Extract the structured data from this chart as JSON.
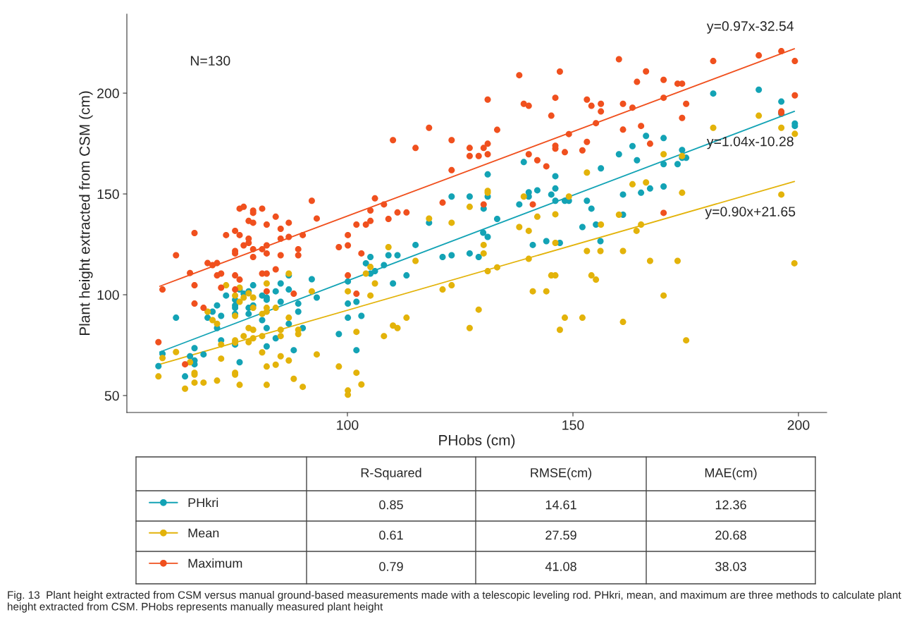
{
  "chart_data": {
    "type": "scatter",
    "xlabel": "PHobs (cm)",
    "ylabel": "Plant height extracted from CSM (cm)",
    "xlim": [
      51.1,
      206.25
    ],
    "ylim": [
      41.6,
      239.2
    ],
    "xticks": [
      100,
      150,
      200
    ],
    "yticks": [
      50,
      100,
      150,
      200
    ],
    "marker": "circle",
    "legend": "bottom",
    "series": [
      {
        "name": "PHkri",
        "color": "#13a3b5",
        "x": [
          62.0,
          59.0,
          58.1,
          65.1,
          66.1,
          66.1,
          66.1,
          64.0,
          68.1,
          70.1,
          69.0,
          71.1,
          72.0,
          71.1,
          72.0,
          73.1,
          75.1,
          75.1,
          75.1,
          75.1,
          75.1,
          76.1,
          76.1,
          77.0,
          78.1,
          78.1,
          78.1,
          79.1,
          79.1,
          81.1,
          82.1,
          82.1,
          81.1,
          82.1,
          82.1,
          84.1,
          85.2,
          85.2,
          87.0,
          87.0,
          84.1,
          89.1,
          89.1,
          90.1,
          88.1,
          87.0,
          92.1,
          93.2,
          98.1,
          100.1,
          100.1,
          100.1,
          139.1,
          131.1,
          146.1,
          146.1,
          142.1,
          140.2,
          140.2,
          145.2,
          131.1,
          127.1,
          123.1,
          146.1,
          148.2,
          149.1,
          153.1,
          138.1,
          130.2,
          154.1,
          133.2,
          118.1,
          130.1,
          131.1,
          115.1,
          141.1,
          144.1,
          147.1,
          152.1,
          104.1,
          105.1,
          105.1,
          106.1,
          108.1,
          109.1,
          111.1,
          121.1,
          123.1,
          127.1,
          129.1,
          110.1,
          113.1,
          102.0,
          103.1,
          102.0,
          181.1,
          191.2,
          196.2,
          196.2,
          199.2,
          199.2,
          166.2,
          170.1,
          163.2,
          160.2,
          164.2,
          174.2,
          174.2,
          175.1,
          170.1,
          173.2,
          156.2,
          167.1,
          165.1,
          170.1,
          161.1,
          161.1,
          155.1,
          156.1
        ],
        "values": [
          88.6,
          70.7,
          64.6,
          69.5,
          73.5,
          67.4,
          65.5,
          59.5,
          70.4,
          91.6,
          88.6,
          94.7,
          89.5,
          83.5,
          77.4,
          99.6,
          97.5,
          94.7,
          93.5,
          90.5,
          75.3,
          102.6,
          66.5,
          100.5,
          101.7,
          93.5,
          90.5,
          104.7,
          94.7,
          99.6,
          98.6,
          97.5,
          87.4,
          83.5,
          74.4,
          101.7,
          105.6,
          96.5,
          102.6,
          85.6,
          78.4,
          95.6,
          91.6,
          83.5,
          72.5,
          109.6,
          107.7,
          98.6,
          80.5,
          106.6,
          95.6,
          88.6,
          165.8,
          159.7,
          158.8,
          152.7,
          151.8,
          150.8,
          148.7,
          149.7,
          148.7,
          148.7,
          148.7,
          146.6,
          146.6,
          146.6,
          146.6,
          144.8,
          142.7,
          142.7,
          137.6,
          135.7,
          130.8,
          128.7,
          124.7,
          124.7,
          126.6,
          125.7,
          133.6,
          115.6,
          118.7,
          110.5,
          111.7,
          114.7,
          119.6,
          119.6,
          118.7,
          119.6,
          120.5,
          118.7,
          105.6,
          109.6,
          96.5,
          89.5,
          72.5,
          199.8,
          201.7,
          195.8,
          189.8,
          184.9,
          183.7,
          178.8,
          177.7,
          173.7,
          169.7,
          166.7,
          171.8,
          167.9,
          167.9,
          164.8,
          164.8,
          162.7,
          152.7,
          150.6,
          153.7,
          149.7,
          139.7,
          134.8,
          126.6
        ]
      },
      {
        "name": "Mean",
        "color": "#e3b30a",
        "x": [
          58.1,
          59.0,
          62.0,
          65.1,
          64.0,
          66.1,
          66.1,
          66.1,
          68.1,
          69.0,
          70.1,
          71.1,
          72.0,
          72.0,
          71.1,
          73.1,
          75.1,
          75.1,
          75.1,
          75.1,
          75.1,
          75.1,
          76.1,
          76.1,
          76.1,
          77.0,
          77.0,
          78.1,
          78.1,
          78.1,
          79.1,
          79.1,
          79.1,
          79.1,
          81.1,
          81.1,
          81.1,
          82.1,
          82.1,
          82.1,
          82.1,
          82.1,
          84.1,
          84.1,
          85.2,
          85.2,
          85.2,
          87.0,
          87.0,
          87.0,
          88.1,
          89.1,
          89.1,
          90.1,
          92.1,
          93.2,
          98.1,
          100.1,
          100.1,
          100.1,
          153.1,
          131.1,
          131.1,
          139.1,
          149.1,
          127.1,
          118.1,
          123.1,
          146.1,
          142.1,
          109.1,
          130.2,
          130.2,
          146.1,
          138.1,
          140.2,
          115.1,
          140.2,
          153.1,
          105.1,
          104.1,
          106.1,
          105.1,
          131.1,
          133.2,
          145.2,
          146.1,
          154.1,
          121.1,
          123.1,
          141.1,
          144.1,
          129.1,
          113.1,
          110.1,
          111.1,
          108.1,
          102.0,
          127.1,
          148.2,
          147.1,
          152.1,
          102.0,
          103.1,
          181.1,
          191.2,
          196.2,
          199.2,
          170.1,
          174.2,
          163.2,
          166.2,
          174.2,
          196.2,
          160.2,
          156.2,
          164.1,
          165.1,
          156.1,
          161.1,
          167.1,
          173.2,
          199.1,
          155.1,
          170.1,
          161.1,
          175.1
        ],
        "values": [
          59.5,
          68.6,
          71.6,
          66.5,
          53.4,
          61.3,
          60.4,
          56.4,
          56.4,
          91.6,
          87.4,
          85.6,
          75.3,
          68.3,
          57.4,
          104.7,
          99.6,
          89.5,
          77.4,
          76.3,
          61.3,
          60.4,
          103.5,
          96.5,
          55.3,
          98.6,
          79.5,
          100.7,
          83.5,
          76.5,
          98.6,
          93.5,
          82.6,
          78.4,
          90.5,
          79.5,
          71.4,
          105.6,
          93.5,
          91.6,
          64.4,
          55.3,
          93.5,
          65.3,
          82.6,
          79.5,
          69.5,
          110.5,
          88.6,
          67.4,
          58.3,
          82.6,
          80.5,
          54.3,
          101.7,
          70.4,
          64.4,
          101.7,
          52.5,
          50.4,
          160.6,
          151.5,
          150.6,
          148.7,
          148.7,
          143.6,
          137.8,
          135.7,
          139.9,
          138.7,
          123.6,
          124.7,
          120.5,
          125.7,
          133.6,
          131.7,
          116.8,
          117.8,
          121.7,
          113.8,
          110.5,
          105.6,
          99.6,
          111.7,
          113.6,
          109.6,
          109.6,
          109.6,
          102.6,
          104.7,
          101.7,
          101.7,
          92.6,
          88.6,
          84.7,
          83.5,
          79.5,
          81.6,
          83.5,
          88.6,
          82.6,
          88.6,
          61.3,
          55.5,
          182.8,
          188.8,
          182.8,
          179.8,
          169.7,
          168.8,
          154.8,
          155.7,
          150.6,
          149.7,
          139.7,
          134.8,
          131.7,
          134.8,
          121.7,
          121.7,
          116.8,
          116.8,
          115.6,
          107.5,
          99.6,
          86.5,
          77.4
        ]
      },
      {
        "name": "Maximum",
        "color": "#f0501e",
        "x": [
          92.1,
          76.1,
          77.0,
          79.1,
          79.1,
          81.1,
          84.1,
          78.1,
          79.1,
          93.2,
          82.1,
          87.0,
          66.1,
          73.1,
          75.1,
          76.1,
          78.1,
          78.1,
          77.0,
          79.1,
          81.1,
          82.1,
          85.2,
          85.2,
          87.0,
          90.1,
          89.1,
          89.1,
          85.2,
          82.1,
          79.1,
          75.1,
          75.1,
          62.0,
          69.0,
          70.1,
          71.1,
          65.1,
          71.1,
          72.0,
          75.1,
          76.1,
          81.1,
          82.1,
          84.1,
          66.1,
          72.0,
          75.1,
          82.1,
          88.1,
          66.1,
          68.1,
          59.0,
          58.1,
          64.0,
          98.1,
          100.1,
          100.1,
          100.1,
          138.1,
          147.1,
          131.1,
          139.1,
          140.2,
          146.1,
          153.1,
          154.1,
          145.2,
          118.1,
          133.2,
          110.1,
          123.1,
          115.1,
          127.1,
          130.2,
          131.1,
          127.1,
          129.1,
          131.1,
          123.1,
          149.1,
          146.1,
          146.1,
          148.2,
          153.1,
          152.1,
          140.2,
          142.1,
          144.1,
          106.1,
          108.1,
          105.1,
          105.1,
          109.1,
          111.1,
          113.1,
          121.1,
          130.2,
          141.1,
          102.0,
          104.1,
          103.1,
          102.0,
          160.2,
          166.2,
          164.2,
          170.1,
          173.2,
          174.2,
          181.1,
          191.2,
          196.2,
          199.2,
          199.2,
          196.2,
          196.2,
          156.2,
          156.2,
          161.1,
          163.2,
          170.1,
          175.1,
          174.2,
          155.1,
          161.1,
          165.1,
          167.1,
          170.1
        ],
        "values": [
          146.6,
          142.7,
          143.6,
          141.7,
          140.6,
          142.7,
          138.7,
          136.6,
          135.7,
          137.8,
          134.8,
          135.7,
          130.6,
          129.6,
          131.7,
          129.6,
          127.8,
          125.7,
          124.5,
          122.6,
          122.6,
          124.5,
          127.8,
          132.7,
          128.7,
          129.6,
          122.6,
          119.6,
          119.6,
          120.5,
          118.7,
          121.7,
          120.5,
          119.6,
          115.7,
          114.7,
          115.7,
          110.8,
          109.6,
          110.5,
          109.6,
          107.5,
          110.5,
          110.5,
          112.6,
          104.7,
          103.5,
          102.6,
          101.7,
          100.5,
          95.6,
          93.5,
          102.6,
          76.5,
          65.5,
          123.6,
          124.5,
          129.6,
          109.6,
          208.9,
          210.7,
          196.8,
          194.7,
          193.7,
          197.7,
          196.8,
          193.7,
          188.8,
          182.8,
          181.8,
          176.7,
          176.7,
          172.8,
          172.8,
          172.8,
          174.9,
          168.8,
          168.8,
          169.7,
          161.8,
          179.7,
          173.9,
          172.5,
          170.7,
          175.8,
          171.6,
          169.7,
          166.7,
          163.7,
          147.8,
          144.8,
          141.8,
          136.6,
          137.6,
          140.8,
          140.8,
          145.7,
          144.8,
          144.8,
          134.8,
          134.8,
          120.5,
          100.5,
          216.8,
          210.8,
          205.6,
          206.6,
          204.7,
          204.7,
          215.9,
          218.7,
          220.8,
          215.9,
          198.9,
          190.9,
          190.2,
          194.7,
          190.9,
          194.7,
          192.8,
          197.7,
          194.7,
          187.7,
          185.1,
          181.9,
          183.7,
          174.9,
          140.6
        ]
      },
      {
        "type": "line",
        "color": "#f0501e",
        "marker": "none",
        "x": [
          58.4,
          199.1
        ],
        "values": [
          104.2,
          222.0
        ]
      },
      {
        "type": "line",
        "color": "#13a3b5",
        "marker": "none",
        "x": [
          58.4,
          199.1
        ],
        "values": [
          71.6,
          191.0
        ]
      },
      {
        "type": "line",
        "color": "#e3b30a",
        "marker": "none",
        "x": [
          58.4,
          199.1
        ],
        "values": [
          65.5,
          156.2
        ]
      }
    ],
    "annotations": [
      "N=130",
      "y=0.97x-32.54",
      "y=1.04x-10.28",
      "y=0.90x+21.65",
      "R-Squared",
      "RMSE(cm)",
      "MAE(cm)",
      "0.85",
      "14.61",
      "12.36",
      "0.61",
      "27.59",
      "20.68",
      "0.79",
      "41.08",
      "38.03",
      "Fig. 13  Plant height extracted from CSM versus manual ground-based measurements made with a telescopic leveling rod. PHkri, mean, and maximum are three methods to calculate plant height extracted from CSM. PHobs represents manually measured plant height"
    ]
  }
}
